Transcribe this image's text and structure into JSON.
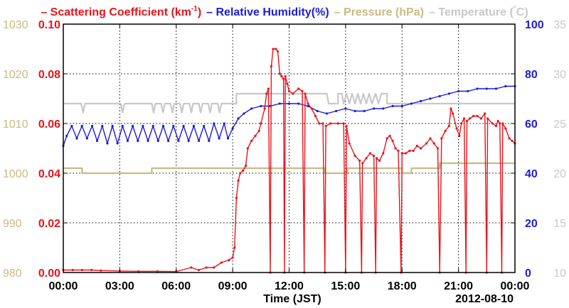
{
  "legend": [
    {
      "key": "scat",
      "name": "Scattering Coefficient (km",
      "sup": "-1",
      "tail": ")",
      "color": "#e8141c"
    },
    {
      "key": "rh",
      "name": "Relative Humidity(%)",
      "sup": "",
      "tail": "",
      "color": "#1c1cd6"
    },
    {
      "key": "pres",
      "name": "Pressure (hPa)",
      "sup": "",
      "tail": "",
      "color": "#c9ba82"
    },
    {
      "key": "temp",
      "name": "Temperature (",
      "sup": "°",
      "tail": "C)",
      "color": "#c8c8c8"
    }
  ],
  "colors": {
    "scat": "#e8141c",
    "rh": "#1c1cd6",
    "pres": "#c9ba82",
    "temp": "#c8c8c8"
  },
  "chart_data": {
    "type": "line",
    "xlabel": "Time (JST)",
    "date": "2012-08-10",
    "x_unit": "hours",
    "xlim": [
      0,
      24
    ],
    "x_ticks": [
      0,
      3,
      6,
      9,
      12,
      15,
      18,
      21,
      24
    ],
    "x_tick_labels": [
      "00:00",
      "03:00",
      "06:00",
      "09:00",
      "12:00",
      "15:00",
      "18:00",
      "21:00",
      "00:00"
    ],
    "grid": true,
    "axes": {
      "pressure": {
        "side": "left-outer",
        "range": [
          980,
          1030
        ],
        "ticks": [
          980,
          990,
          1000,
          1010,
          1020,
          1030
        ],
        "labels": [
          "980",
          "990",
          "1000",
          "1010",
          "1020",
          "1030"
        ]
      },
      "scattering": {
        "side": "left-inner",
        "range": [
          0,
          0.1
        ],
        "ticks": [
          0,
          0.02,
          0.04,
          0.06,
          0.08,
          0.1
        ],
        "labels": [
          "0.00",
          "0.02",
          "0.04",
          "0.06",
          "0.08",
          "0.10"
        ]
      },
      "humidity": {
        "side": "right-inner",
        "range": [
          0,
          100
        ],
        "ticks": [
          0,
          20,
          40,
          60,
          80,
          100
        ],
        "labels": [
          "0",
          "20",
          "40",
          "60",
          "80",
          "100"
        ]
      },
      "temperature": {
        "side": "right-outer",
        "range": [
          10,
          35
        ],
        "ticks": [
          10,
          15,
          20,
          25,
          30,
          35
        ],
        "labels": [
          "10",
          "15",
          "20",
          "25",
          "30",
          "35"
        ]
      }
    },
    "series": [
      {
        "key": "scat",
        "name": "Scattering Coefficient (km-1)",
        "axis": "scattering",
        "markers": true,
        "points": [
          [
            0,
            0.001
          ],
          [
            0.5,
            0.001
          ],
          [
            1,
            0.001
          ],
          [
            1.5,
            0.001
          ],
          [
            2,
            0.0008
          ],
          [
            3,
            0.0006
          ],
          [
            4,
            0.0005
          ],
          [
            5,
            0.0005
          ],
          [
            6,
            0.0004
          ],
          [
            6.8,
            0.002
          ],
          [
            7.2,
            0.001
          ],
          [
            7.6,
            0.002
          ],
          [
            8,
            0.002
          ],
          [
            8.4,
            0.004
          ],
          [
            8.8,
            0.005
          ],
          [
            9,
            0.006
          ],
          [
            9.1,
            0.01
          ],
          [
            9.2,
            0.03
          ],
          [
            9.3,
            0.037
          ],
          [
            9.4,
            0.04
          ],
          [
            9.55,
            0.041
          ],
          [
            9.7,
            0.043
          ],
          [
            9.8,
            0.05
          ],
          [
            10,
            0.053
          ],
          [
            10.2,
            0.055
          ],
          [
            10.4,
            0.057
          ],
          [
            10.5,
            0.06
          ],
          [
            10.7,
            0.066
          ],
          [
            10.8,
            0.072
          ],
          [
            10.9,
            0.074
          ],
          [
            11,
            0
          ],
          [
            11.05,
            0.083
          ],
          [
            11.15,
            0.09
          ],
          [
            11.3,
            0.09
          ],
          [
            11.4,
            0.089
          ],
          [
            11.5,
            0.08
          ],
          [
            11.6,
            0.079
          ],
          [
            11.7,
            0.078
          ],
          [
            11.75,
            0
          ],
          [
            11.8,
            0.079
          ],
          [
            11.9,
            0.076
          ],
          [
            12,
            0.073
          ],
          [
            12.2,
            0.072
          ],
          [
            12.5,
            0.074
          ],
          [
            12.7,
            0.073
          ],
          [
            12.8,
            0
          ],
          [
            12.85,
            0.072
          ],
          [
            13,
            0.068
          ],
          [
            13.2,
            0.066
          ],
          [
            13.4,
            0.063
          ],
          [
            13.6,
            0.06
          ],
          [
            13.8,
            0.06
          ],
          [
            13.9,
            0
          ],
          [
            13.95,
            0.059
          ],
          [
            14.2,
            0.06
          ],
          [
            14.6,
            0.06
          ],
          [
            14.9,
            0.06
          ],
          [
            15,
            0
          ],
          [
            15.05,
            0.059
          ],
          [
            15.2,
            0.052
          ],
          [
            15.5,
            0.047
          ],
          [
            15.75,
            0.045
          ],
          [
            15.85,
            0
          ],
          [
            15.9,
            0.044
          ],
          [
            16.1,
            0.046
          ],
          [
            16.3,
            0.048
          ],
          [
            16.5,
            0.047
          ],
          [
            16.6,
            0
          ],
          [
            16.65,
            0.046
          ],
          [
            16.8,
            0.045
          ],
          [
            17,
            0.048
          ],
          [
            17.2,
            0.054
          ],
          [
            17.35,
            0.055
          ],
          [
            17.5,
            0.053
          ],
          [
            17.65,
            0.05
          ],
          [
            17.8,
            0.049
          ],
          [
            17.95,
            0
          ],
          [
            18,
            0.048
          ],
          [
            18.2,
            0.048
          ],
          [
            18.4,
            0.049
          ],
          [
            18.6,
            0.049
          ],
          [
            18.8,
            0.051
          ],
          [
            19,
            0.05
          ],
          [
            19.3,
            0.052
          ],
          [
            19.5,
            0.054
          ],
          [
            19.7,
            0.052
          ],
          [
            19.9,
            0.05
          ],
          [
            20,
            0
          ],
          [
            20.1,
            0.054
          ],
          [
            20.3,
            0.057
          ],
          [
            20.5,
            0.059
          ],
          [
            20.6,
            0.066
          ],
          [
            20.7,
            0.064
          ],
          [
            20.9,
            0.058
          ],
          [
            21.05,
            0.055
          ],
          [
            21.15,
            0.06
          ],
          [
            21.3,
            0.062
          ],
          [
            21.4,
            0
          ],
          [
            21.45,
            0.061
          ],
          [
            21.6,
            0.062
          ],
          [
            21.8,
            0.063
          ],
          [
            22,
            0.063
          ],
          [
            22.2,
            0.062
          ],
          [
            22.4,
            0.064
          ],
          [
            22.5,
            0
          ],
          [
            22.55,
            0.062
          ],
          [
            22.8,
            0.06
          ],
          [
            23,
            0.059
          ],
          [
            23.1,
            0.061
          ],
          [
            23.2,
            0.06
          ],
          [
            23.3,
            0
          ],
          [
            23.35,
            0.06
          ],
          [
            23.5,
            0.058
          ],
          [
            23.7,
            0.054
          ],
          [
            23.85,
            0.053
          ],
          [
            24,
            0.052
          ]
        ]
      },
      {
        "key": "rh",
        "name": "Relative Humidity(%)",
        "axis": "humidity",
        "markers": true,
        "points": [
          [
            0,
            51
          ],
          [
            0.18,
            55
          ],
          [
            0.45,
            59
          ],
          [
            0.72,
            54
          ],
          [
            0.99,
            59
          ],
          [
            1.26,
            54
          ],
          [
            1.53,
            59
          ],
          [
            1.8,
            53
          ],
          [
            2.07,
            59
          ],
          [
            2.34,
            52
          ],
          [
            2.61,
            59
          ],
          [
            2.88,
            52
          ],
          [
            3.15,
            59
          ],
          [
            3.42,
            53
          ],
          [
            3.69,
            59
          ],
          [
            3.96,
            53
          ],
          [
            4.23,
            59
          ],
          [
            4.5,
            53
          ],
          [
            4.77,
            59
          ],
          [
            5.04,
            53
          ],
          [
            5.31,
            59
          ],
          [
            5.58,
            53
          ],
          [
            5.85,
            59
          ],
          [
            6.12,
            53
          ],
          [
            6.39,
            59
          ],
          [
            6.66,
            53
          ],
          [
            6.93,
            59
          ],
          [
            7.2,
            53
          ],
          [
            7.47,
            59
          ],
          [
            7.74,
            53
          ],
          [
            8.01,
            60
          ],
          [
            8.28,
            54
          ],
          [
            8.55,
            60
          ],
          [
            8.75,
            54
          ],
          [
            9,
            58
          ],
          [
            9.3,
            62
          ],
          [
            9.6,
            64
          ],
          [
            10,
            66
          ],
          [
            10.5,
            67
          ],
          [
            11,
            67
          ],
          [
            11.5,
            68
          ],
          [
            12,
            68
          ],
          [
            12.5,
            68
          ],
          [
            13,
            67
          ],
          [
            13.5,
            65
          ],
          [
            14,
            64
          ],
          [
            14.5,
            65
          ],
          [
            15,
            66
          ],
          [
            15.5,
            65
          ],
          [
            16,
            65
          ],
          [
            16.5,
            66
          ],
          [
            17,
            66
          ],
          [
            17.5,
            67
          ],
          [
            18,
            67
          ],
          [
            18.5,
            68
          ],
          [
            19,
            69
          ],
          [
            19.5,
            70
          ],
          [
            20,
            71
          ],
          [
            20.5,
            72
          ],
          [
            21,
            73
          ],
          [
            21.5,
            73
          ],
          [
            22,
            74
          ],
          [
            22.5,
            74
          ],
          [
            23,
            74
          ],
          [
            23.5,
            75
          ],
          [
            24,
            75
          ]
        ]
      },
      {
        "key": "pres",
        "name": "Pressure (hPa)",
        "axis": "pressure",
        "markers": false,
        "points": [
          [
            0,
            1001
          ],
          [
            1,
            1001
          ],
          [
            1,
            1000
          ],
          [
            4.7,
            1000
          ],
          [
            4.7,
            1001
          ],
          [
            13.9,
            1001
          ],
          [
            13.9,
            1000
          ],
          [
            15.1,
            1000
          ],
          [
            15.1,
            1001
          ],
          [
            18,
            1001
          ],
          [
            18,
            1000
          ],
          [
            18.5,
            1000
          ],
          [
            18.5,
            1001
          ],
          [
            20,
            1001
          ],
          [
            20,
            1002
          ],
          [
            24,
            1002
          ]
        ]
      },
      {
        "key": "temp",
        "name": "Temperature",
        "axis": "temperature",
        "markers": false,
        "points": [
          [
            0,
            27
          ],
          [
            0.95,
            27
          ],
          [
            1.05,
            26.1
          ],
          [
            1.15,
            27
          ],
          [
            3.05,
            27
          ],
          [
            3.15,
            26.1
          ],
          [
            3.25,
            27
          ],
          [
            4.7,
            27
          ],
          [
            4.8,
            26.1
          ],
          [
            4.9,
            27
          ],
          [
            5.2,
            27
          ],
          [
            5.3,
            26.1
          ],
          [
            5.4,
            27
          ],
          [
            5.7,
            27
          ],
          [
            5.8,
            26.1
          ],
          [
            5.9,
            27
          ],
          [
            6.2,
            27
          ],
          [
            6.3,
            26.1
          ],
          [
            6.4,
            27
          ],
          [
            6.7,
            27
          ],
          [
            6.8,
            26.1
          ],
          [
            6.9,
            27
          ],
          [
            7.2,
            27
          ],
          [
            7.3,
            26.1
          ],
          [
            7.4,
            27
          ],
          [
            7.7,
            27
          ],
          [
            7.8,
            26.1
          ],
          [
            7.9,
            27
          ],
          [
            8.2,
            27
          ],
          [
            8.3,
            26.1
          ],
          [
            8.4,
            27
          ],
          [
            9.2,
            27
          ],
          [
            9.2,
            28
          ],
          [
            14,
            28
          ],
          [
            14.1,
            27
          ],
          [
            14.6,
            27
          ],
          [
            14.6,
            28
          ],
          [
            14.8,
            28
          ],
          [
            14.9,
            27
          ],
          [
            15.05,
            28
          ],
          [
            15.2,
            27
          ],
          [
            15.35,
            28
          ],
          [
            15.5,
            27
          ],
          [
            15.65,
            28
          ],
          [
            15.8,
            27
          ],
          [
            15.95,
            28
          ],
          [
            16.1,
            27
          ],
          [
            16.25,
            28
          ],
          [
            16.4,
            27
          ],
          [
            16.6,
            28
          ],
          [
            16.75,
            27
          ],
          [
            16.9,
            28
          ],
          [
            17.2,
            28
          ],
          [
            17.2,
            27
          ],
          [
            24,
            27
          ]
        ]
      }
    ]
  }
}
